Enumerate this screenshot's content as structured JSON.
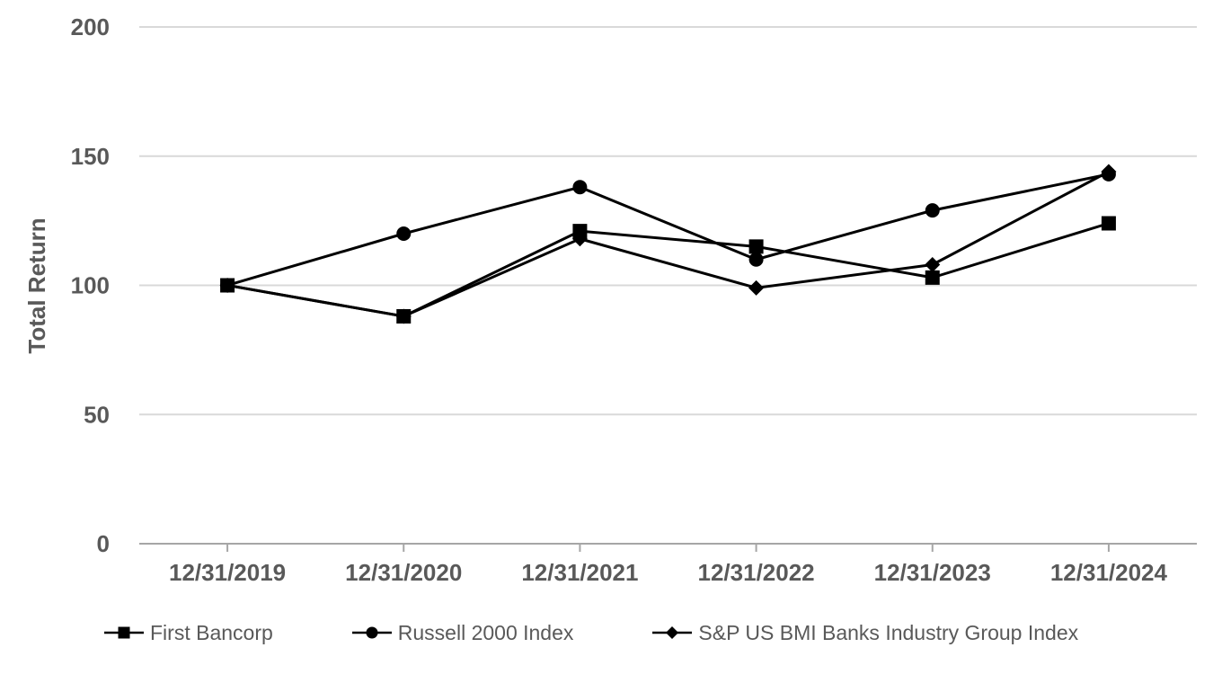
{
  "chart_data": {
    "type": "line",
    "title": "",
    "xlabel": "",
    "ylabel": "Total Return",
    "categories": [
      "12/31/2019",
      "12/31/2020",
      "12/31/2021",
      "12/31/2022",
      "12/31/2023",
      "12/31/2024"
    ],
    "series": [
      {
        "name": "First Bancorp",
        "marker": "square",
        "values": [
          100,
          88,
          121,
          115,
          103,
          124
        ]
      },
      {
        "name": "Russell 2000 Index",
        "marker": "circle",
        "values": [
          100,
          120,
          138,
          110,
          129,
          143
        ]
      },
      {
        "name": "S&P US BMI Banks Industry Group Index",
        "marker": "diamond",
        "values": [
          100,
          88,
          118,
          99,
          108,
          144
        ]
      }
    ],
    "y_ticks": [
      0,
      50,
      100,
      150,
      200
    ],
    "ylim": [
      0,
      200
    ],
    "grid": "horizontal-only",
    "legend_position": "bottom",
    "line_color": "#000000",
    "marker_color": "#000000",
    "label_color": "#595959",
    "gridline_color": "#d9d9d9",
    "axis_color": "#a6a6a6",
    "background_color": "#ffffff"
  }
}
